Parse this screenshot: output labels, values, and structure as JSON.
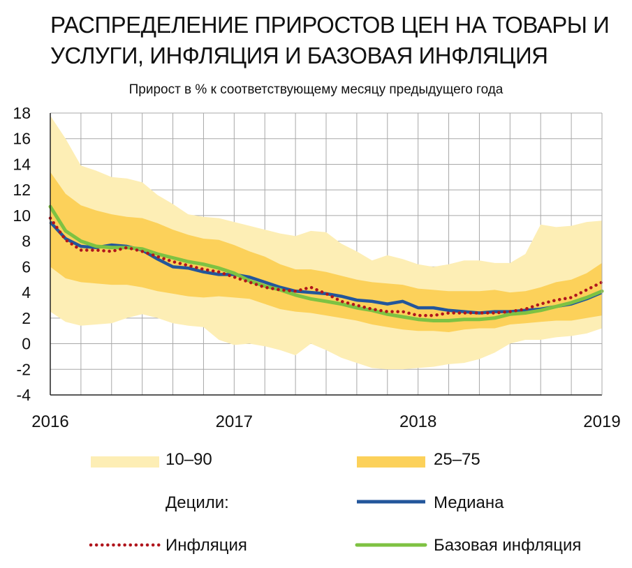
{
  "title": "РАСПРЕДЕЛЕНИЕ ПРИРОСТОВ ЦЕН НА ТОВАРЫ И УСЛУГИ, ИНФЛЯЦИЯ И БАЗОВАЯ ИНФЛЯЦИЯ",
  "subtitle": "Прирост в % к соответствующему месяцу предыдущего года",
  "colors": {
    "band_10_90": "#fdeeb5",
    "band_25_75": "#fcd15a",
    "median": "#23569b",
    "inflation": "#b0151c",
    "core": "#7ec242",
    "grid": "#a8a8a8"
  },
  "legend": {
    "band_10_90": "10–90",
    "band_25_75": "25–75",
    "deciles": "Децили:",
    "median": "Медиана",
    "inflation": "Инфляция",
    "core": "Базовая инфляция"
  },
  "chart_data": {
    "type": "area",
    "title": "РАСПРЕДЕЛЕНИЕ ПРИРОСТОВ ЦЕН НА ТОВАРЫ И УСЛУГИ, ИНФЛЯЦИЯ И БАЗОВАЯ ИНФЛЯЦИЯ",
    "subtitle": "Прирост в % к соответствующему месяцу предыдущего года",
    "xlabel": "",
    "ylabel": "",
    "xlim": [
      0,
      36
    ],
    "ylim": [
      -4,
      18
    ],
    "yticks": [
      -4,
      -2,
      0,
      2,
      4,
      6,
      8,
      10,
      12,
      14,
      16,
      18
    ],
    "xtick_positions": [
      0,
      12,
      24,
      36
    ],
    "xtick_labels": [
      "2016",
      "2017",
      "2018",
      "2019"
    ],
    "grid": true,
    "x": [
      0,
      1,
      2,
      3,
      4,
      5,
      6,
      7,
      8,
      9,
      10,
      11,
      12,
      13,
      14,
      15,
      16,
      17,
      18,
      19,
      20,
      21,
      22,
      23,
      24,
      25,
      26,
      27,
      28,
      29,
      30,
      31,
      32,
      33,
      34,
      35,
      36
    ],
    "bands": [
      {
        "name": "10–90",
        "lower": [
          2.5,
          1.7,
          1.4,
          1.5,
          1.6,
          2.0,
          2.3,
          2.0,
          1.6,
          1.4,
          1.3,
          0.3,
          -0.1,
          0.0,
          -0.2,
          -0.5,
          -0.9,
          0.0,
          -0.5,
          -1.1,
          -1.5,
          -1.9,
          -2.0,
          -2.0,
          -1.9,
          -1.8,
          -1.6,
          -1.5,
          -1.2,
          -0.7,
          0.0,
          0.3,
          0.3,
          0.5,
          0.6,
          0.8,
          1.2
        ],
        "upper": [
          17.8,
          16.0,
          13.9,
          13.5,
          13.0,
          12.9,
          12.6,
          11.6,
          10.9,
          10.1,
          9.9,
          9.8,
          9.5,
          9.2,
          8.9,
          8.6,
          8.4,
          8.8,
          8.7,
          7.8,
          7.2,
          6.5,
          6.9,
          6.6,
          6.2,
          6.0,
          6.2,
          6.5,
          6.5,
          6.3,
          6.3,
          7.0,
          9.3,
          9.1,
          9.2,
          9.5,
          9.6
        ],
        "color": "#fdeeb5"
      },
      {
        "name": "25–75",
        "lower": [
          6.0,
          5.1,
          4.8,
          4.7,
          4.6,
          4.6,
          4.4,
          4.1,
          3.9,
          3.7,
          3.6,
          3.7,
          3.6,
          3.5,
          3.1,
          2.7,
          2.5,
          2.4,
          2.2,
          2.0,
          1.8,
          1.5,
          1.3,
          1.1,
          1.0,
          1.0,
          0.9,
          1.1,
          1.2,
          1.2,
          1.5,
          1.6,
          1.7,
          1.8,
          1.8,
          2.0,
          2.2
        ],
        "upper": [
          13.4,
          11.7,
          10.8,
          10.4,
          10.1,
          9.9,
          9.8,
          9.4,
          8.9,
          8.5,
          8.2,
          8.1,
          7.7,
          7.2,
          6.8,
          6.2,
          5.8,
          5.8,
          5.6,
          5.3,
          5.0,
          4.8,
          4.7,
          4.6,
          4.3,
          4.2,
          4.1,
          4.1,
          4.1,
          4.2,
          4.0,
          4.1,
          4.4,
          4.8,
          5.0,
          5.5,
          6.3
        ],
        "color": "#fcd15a"
      }
    ],
    "series": [
      {
        "name": "Медиана",
        "values": [
          9.5,
          8.2,
          7.6,
          7.5,
          7.7,
          7.6,
          7.3,
          6.6,
          6.0,
          5.9,
          5.6,
          5.4,
          5.4,
          5.2,
          4.8,
          4.4,
          4.1,
          4.0,
          3.9,
          3.7,
          3.4,
          3.3,
          3.1,
          3.3,
          2.8,
          2.8,
          2.6,
          2.5,
          2.4,
          2.5,
          2.5,
          2.6,
          2.7,
          2.9,
          3.1,
          3.5,
          4.0
        ],
        "color": "#23569b"
      },
      {
        "name": "Инфляция",
        "values": [
          9.8,
          8.1,
          7.3,
          7.3,
          7.2,
          7.5,
          7.2,
          6.8,
          6.4,
          6.1,
          5.8,
          5.6,
          5.2,
          4.8,
          4.4,
          4.2,
          4.1,
          4.4,
          3.9,
          3.3,
          3.0,
          2.7,
          2.5,
          2.5,
          2.2,
          2.2,
          2.4,
          2.4,
          2.4,
          2.4,
          2.5,
          2.7,
          3.1,
          3.4,
          3.6,
          4.2,
          4.8
        ],
        "color": "#b0151c"
      },
      {
        "name": "Базовая инфляция",
        "values": [
          10.7,
          8.8,
          8.0,
          7.6,
          7.5,
          7.5,
          7.4,
          7.0,
          6.7,
          6.4,
          6.2,
          5.9,
          5.5,
          4.9,
          4.5,
          4.2,
          3.8,
          3.5,
          3.3,
          3.1,
          2.8,
          2.6,
          2.3,
          2.1,
          1.9,
          1.8,
          1.8,
          1.9,
          1.9,
          2.0,
          2.3,
          2.4,
          2.6,
          2.9,
          3.2,
          3.6,
          4.1
        ],
        "color": "#7ec242"
      }
    ]
  }
}
